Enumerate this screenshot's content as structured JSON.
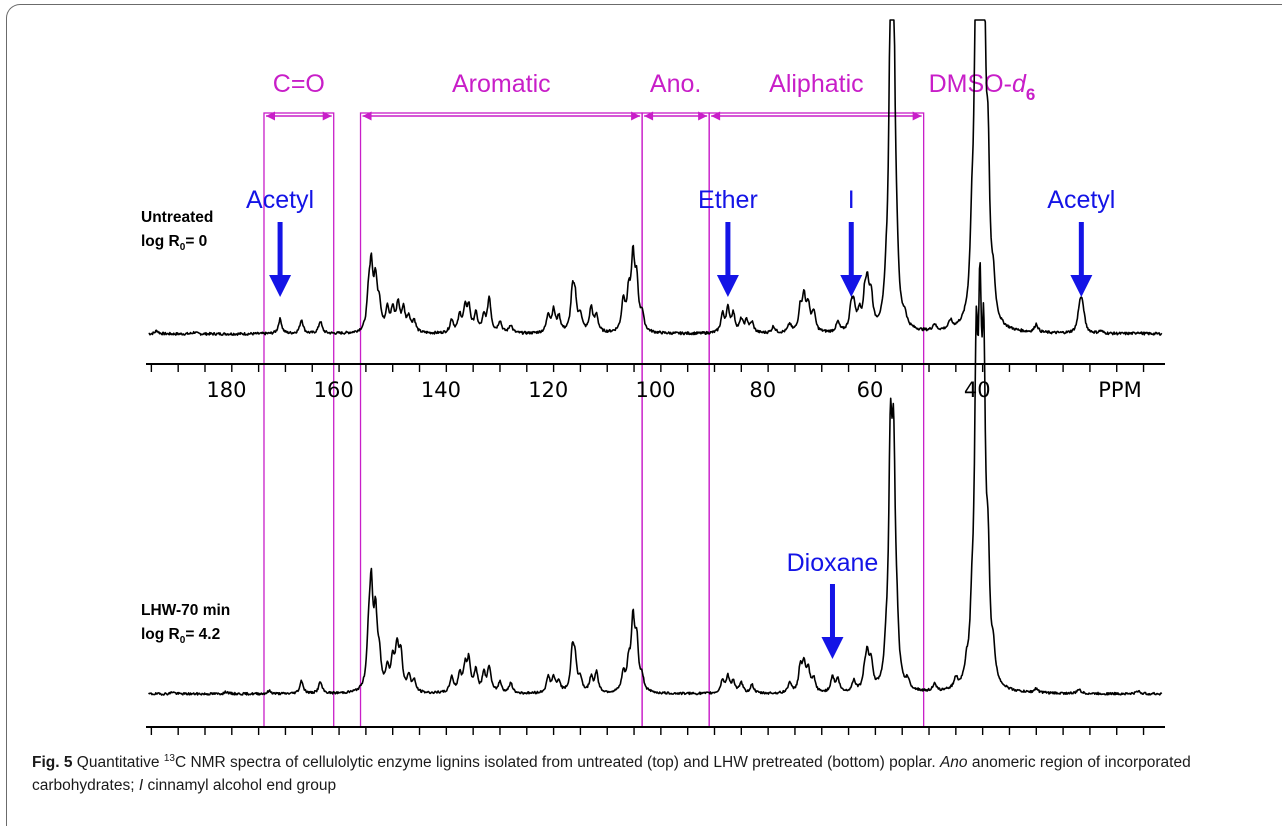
{
  "colors": {
    "region": "#c81ec8",
    "annotation": "#1414e6",
    "spectrum": "#000000"
  },
  "chart_data": {
    "type": "line",
    "title": "",
    "axis": {
      "x_reversed": true,
      "xlim": [
        195,
        5
      ],
      "tick_labels": [
        "180",
        "160",
        "140",
        "120",
        "100",
        "80",
        "60",
        "40"
      ],
      "tick_values": [
        180,
        160,
        140,
        120,
        100,
        80,
        60,
        40
      ],
      "unit_label": "PPM"
    },
    "regions": [
      {
        "label": "C=O",
        "from": 173,
        "to": 160
      },
      {
        "label": "Aromatic",
        "from": 155,
        "to": 102.5
      },
      {
        "label": "Ano.",
        "from": 102.5,
        "to": 90
      },
      {
        "label": "Aliphatic",
        "from": 90,
        "to": 50
      },
      {
        "label": "DMSO-d",
        "subscript": "6",
        "at": 39.5
      }
    ],
    "series": [
      {
        "label_line1": "Untreated",
        "label_line2_pre": "log R",
        "label_line2_sub": "0",
        "label_line2_post": "= 0",
        "peaks": [
          [
            193,
            4
          ],
          [
            186,
            2
          ],
          [
            170,
            18
          ],
          [
            166,
            17
          ],
          [
            162.5,
            15
          ],
          [
            153.5,
            36
          ],
          [
            153,
            72
          ],
          [
            152.2,
            56
          ],
          [
            151.5,
            30
          ],
          [
            150,
            28
          ],
          [
            149,
            25
          ],
          [
            148,
            33
          ],
          [
            147,
            27
          ],
          [
            146,
            18
          ],
          [
            145,
            14
          ],
          [
            138,
            16
          ],
          [
            136.5,
            20
          ],
          [
            135.5,
            27
          ],
          [
            134.8,
            29
          ],
          [
            133.5,
            22
          ],
          [
            132,
            18
          ],
          [
            131,
            42
          ],
          [
            129,
            14
          ],
          [
            127,
            10
          ],
          [
            120,
            22
          ],
          [
            119,
            26
          ],
          [
            118,
            18
          ],
          [
            115.5,
            45
          ],
          [
            115,
            38
          ],
          [
            114,
            20
          ],
          [
            112,
            30
          ],
          [
            111,
            20
          ],
          [
            106,
            38
          ],
          [
            105,
            42
          ],
          [
            104.2,
            85
          ],
          [
            103.5,
            55
          ],
          [
            102.5,
            20
          ],
          [
            87.5,
            22
          ],
          [
            86.5,
            28
          ],
          [
            85.5,
            22
          ],
          [
            84,
            15
          ],
          [
            83,
            14
          ],
          [
            82,
            12
          ],
          [
            78,
            8
          ],
          [
            75,
            10
          ],
          [
            73,
            28
          ],
          [
            72.3,
            40
          ],
          [
            71.5,
            30
          ],
          [
            70.5,
            24
          ],
          [
            66,
            12
          ],
          [
            63.5,
            28
          ],
          [
            63,
            26
          ],
          [
            62,
            20
          ],
          [
            61,
            33
          ],
          [
            60.5,
            48
          ],
          [
            59.8,
            38
          ],
          [
            57,
            30
          ],
          [
            56.2,
            320
          ],
          [
            55.6,
            330
          ],
          [
            55,
            40
          ],
          [
            53.5,
            12
          ],
          [
            48,
            8
          ],
          [
            45,
            10
          ],
          [
            41,
            80
          ],
          [
            40.2,
            400
          ],
          [
            39.5,
            420
          ],
          [
            38.8,
            400
          ],
          [
            38,
            160
          ],
          [
            37,
            40
          ],
          [
            29,
            10
          ],
          [
            21,
            20
          ],
          [
            20.6,
            28
          ],
          [
            20.2,
            15
          ],
          [
            17,
            3
          ],
          [
            10,
            2
          ]
        ],
        "annotations": [
          {
            "label": "Acetyl",
            "ppm": 170.0
          },
          {
            "label": "Ether",
            "ppm": 86.5
          },
          {
            "label": "I",
            "ppm": 63.5
          },
          {
            "label": "Acetyl",
            "ppm": 20.6
          }
        ]
      },
      {
        "label_line1": "LHW-70 min",
        "label_line2_pre": "log R",
        "label_line2_sub": "0",
        "label_line2_post": "= 4.2",
        "peaks": [
          [
            190,
            3
          ],
          [
            180,
            3
          ],
          [
            172,
            4
          ],
          [
            166,
            18
          ],
          [
            162.5,
            16
          ],
          [
            153.5,
            60
          ],
          [
            153,
            130
          ],
          [
            152.2,
            95
          ],
          [
            151.5,
            40
          ],
          [
            150,
            30
          ],
          [
            149,
            40
          ],
          [
            148.2,
            55
          ],
          [
            147.5,
            50
          ],
          [
            146,
            22
          ],
          [
            145,
            15
          ],
          [
            138,
            22
          ],
          [
            136.5,
            25
          ],
          [
            135.5,
            33
          ],
          [
            134.8,
            42
          ],
          [
            133.5,
            30
          ],
          [
            132,
            25
          ],
          [
            131,
            35
          ],
          [
            129,
            15
          ],
          [
            127,
            14
          ],
          [
            120,
            22
          ],
          [
            119,
            20
          ],
          [
            118,
            15
          ],
          [
            115.5,
            55
          ],
          [
            115,
            40
          ],
          [
            114,
            18
          ],
          [
            112,
            20
          ],
          [
            111,
            28
          ],
          [
            106,
            25
          ],
          [
            105,
            35
          ],
          [
            104.2,
            95
          ],
          [
            103.5,
            65
          ],
          [
            102.5,
            18
          ],
          [
            87.5,
            18
          ],
          [
            86.5,
            22
          ],
          [
            85.5,
            16
          ],
          [
            84,
            14
          ],
          [
            82,
            12
          ],
          [
            75,
            14
          ],
          [
            73,
            34
          ],
          [
            72.3,
            36
          ],
          [
            71.5,
            28
          ],
          [
            70.5,
            18
          ],
          [
            67,
            22
          ],
          [
            66,
            18
          ],
          [
            63,
            16
          ],
          [
            61,
            22
          ],
          [
            60.5,
            45
          ],
          [
            59.8,
            36
          ],
          [
            57,
            35
          ],
          [
            56.2,
            310
          ],
          [
            55.6,
            290
          ],
          [
            55,
            50
          ],
          [
            53,
            12
          ],
          [
            48,
            10
          ],
          [
            44,
            14
          ],
          [
            42,
            20
          ],
          [
            41,
            70
          ],
          [
            40.2,
            395
          ],
          [
            39.5,
            410
          ],
          [
            38.8,
            390
          ],
          [
            38,
            140
          ],
          [
            37,
            35
          ],
          [
            29,
            6
          ],
          [
            21,
            6
          ],
          [
            10,
            4
          ]
        ],
        "annotations": [
          {
            "label": "Dioxane",
            "ppm": 67.0
          }
        ]
      }
    ]
  },
  "caption": {
    "fig_label": "Fig. 5",
    "part1": "Quantitative ",
    "sup": "13",
    "part2": "C NMR spectra of cellulolytic enzyme lignins isolated from untreated (top) and LHW pretreated (bottom) poplar. ",
    "italic1": "Ano",
    "part3": " anomeric region of incorporated carbohydrates; ",
    "italic2": "I",
    "part4": " cinnamyl alcohol end group"
  }
}
